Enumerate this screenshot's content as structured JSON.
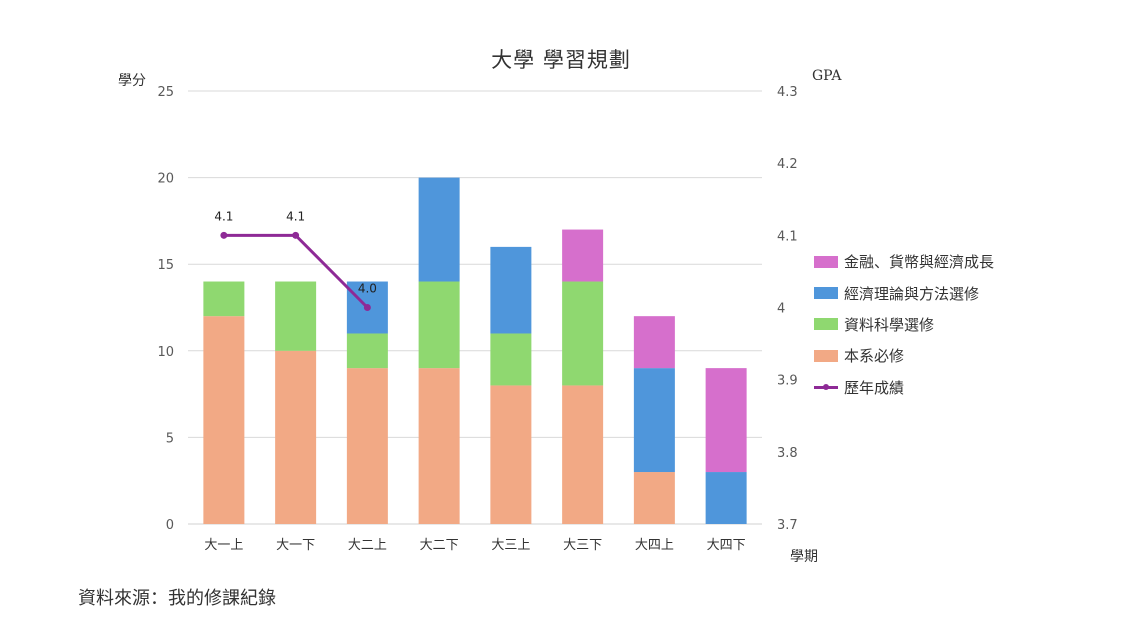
{
  "chart_data": {
    "type": "bar",
    "title": "大學 學習規劃",
    "ylabel": "學分",
    "y2label": "GPA",
    "xlabel": "學期",
    "ylim": [
      0,
      25
    ],
    "yticks": [
      0,
      5,
      10,
      15,
      20,
      25
    ],
    "y2lim": [
      3.7,
      4.3
    ],
    "y2ticks": [
      "3.7",
      "3.8",
      "3.9",
      "4",
      "4.1",
      "4.2",
      "4.3"
    ],
    "categories": [
      "大一上",
      "大一下",
      "大二上",
      "大二下",
      "大三上",
      "大三下",
      "大四上",
      "大四下"
    ],
    "stacked": true,
    "series": [
      {
        "name": "本系必修",
        "values": [
          12,
          10,
          9,
          9,
          8,
          8,
          3,
          0
        ],
        "color": "#F2A985"
      },
      {
        "name": "資料科學選修",
        "values": [
          2,
          4,
          2,
          5,
          3,
          6,
          0,
          0
        ],
        "color": "#8FD870"
      },
      {
        "name": "經濟理論與方法選修",
        "values": [
          0,
          0,
          3,
          6,
          5,
          0,
          6,
          3
        ],
        "color": "#4F96DB"
      },
      {
        "name": "金融、貨幣與經濟成長",
        "values": [
          0,
          0,
          0,
          0,
          0,
          3,
          3,
          6
        ],
        "color": "#D66FCC"
      }
    ],
    "line_series": {
      "name": "歷年成績",
      "axis": "right",
      "values": [
        4.1,
        4.1,
        4.0
      ],
      "labels": [
        "4.1",
        "4.1",
        "4.0"
      ],
      "color": "#8E2A96"
    },
    "grid": true,
    "legend_position": "right"
  },
  "source_note": "資料來源：我的修課紀錄"
}
